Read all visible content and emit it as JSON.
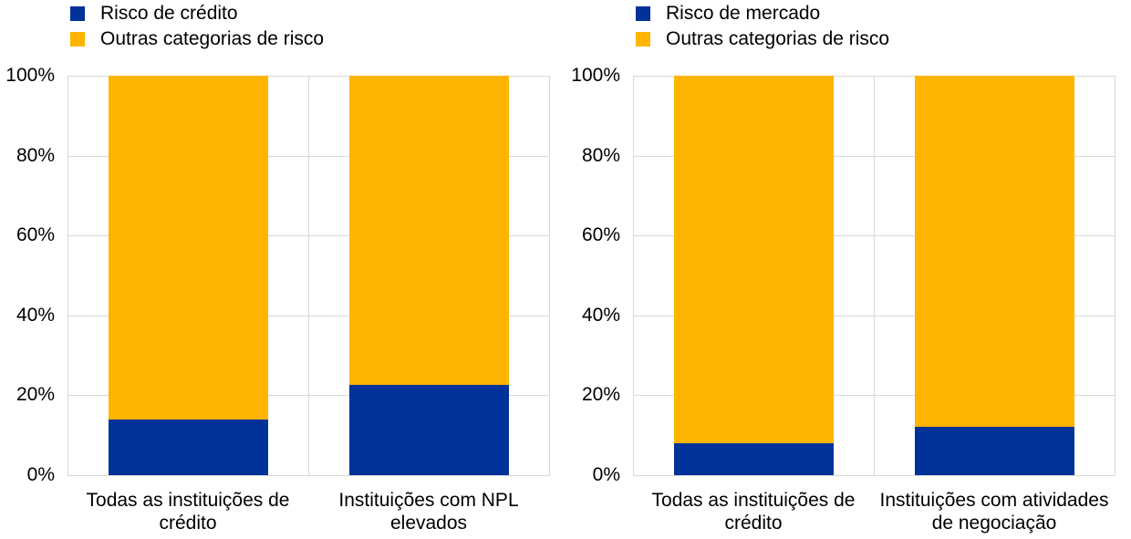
{
  "colors": {
    "primary": "#003299",
    "other": "#FFB400",
    "grid": "#D9D9D9",
    "text": "#000000"
  },
  "chart_data": [
    {
      "type": "bar",
      "stacked": true,
      "legend_position": "top-left",
      "grid": true,
      "categories": [
        "Todas as instituições de crédito",
        "Instituições com NPL elevados"
      ],
      "series": [
        {
          "name": "Risco de crédito",
          "color": "#003299",
          "values": [
            14,
            22.5
          ]
        },
        {
          "name": "Outras categorias de risco",
          "color": "#FFB400",
          "values": [
            86,
            77.5
          ]
        }
      ],
      "ylim": [
        0,
        100
      ],
      "yticks": [
        0,
        20,
        40,
        60,
        80,
        100
      ],
      "ytick_labels": [
        "0%",
        "20%",
        "40%",
        "60%",
        "80%",
        "100%"
      ]
    },
    {
      "type": "bar",
      "stacked": true,
      "legend_position": "top-left",
      "grid": true,
      "categories": [
        "Todas as instituições de crédito",
        "Instituições com atividades de negociação"
      ],
      "series": [
        {
          "name": "Risco de mercado",
          "color": "#003299",
          "values": [
            8,
            12
          ]
        },
        {
          "name": "Outras categorias de risco",
          "color": "#FFB400",
          "values": [
            92,
            88
          ]
        }
      ],
      "ylim": [
        0,
        100
      ],
      "yticks": [
        0,
        20,
        40,
        60,
        80,
        100
      ],
      "ytick_labels": [
        "0%",
        "20%",
        "40%",
        "60%",
        "80%",
        "100%"
      ]
    }
  ]
}
